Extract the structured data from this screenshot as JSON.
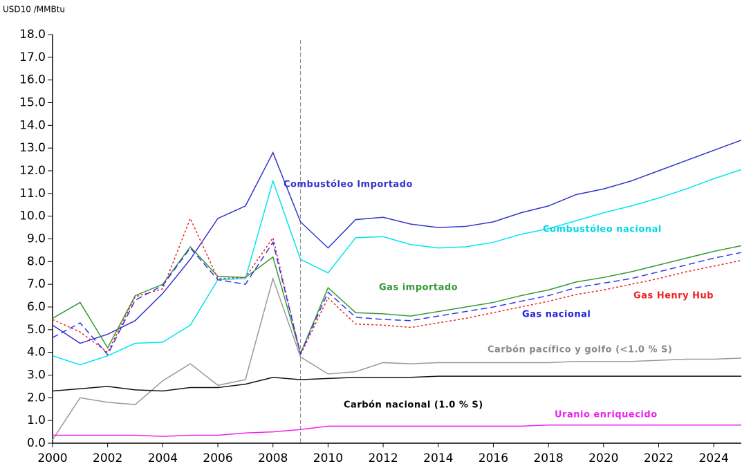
{
  "chart_data": {
    "type": "line",
    "y_label": "USD10 /MMBtu",
    "x": [
      2000,
      2001,
      2002,
      2003,
      2004,
      2005,
      2006,
      2007,
      2008,
      2009,
      2010,
      2011,
      2012,
      2013,
      2014,
      2015,
      2016,
      2017,
      2018,
      2019,
      2020,
      2021,
      2022,
      2023,
      2024,
      2025
    ],
    "xlim": [
      2000,
      2025
    ],
    "xticks": [
      2000,
      2002,
      2004,
      2006,
      2008,
      2010,
      2012,
      2014,
      2016,
      2018,
      2020,
      2022,
      2024
    ],
    "ylim": [
      0,
      18
    ],
    "yticks": [
      {
        "value": 0,
        "label": "0.0"
      },
      {
        "value": 1,
        "label": "1.0"
      },
      {
        "value": 2,
        "label": "2.0"
      },
      {
        "value": 3,
        "label": "3.0"
      },
      {
        "value": 4,
        "label": "4.0"
      },
      {
        "value": 5,
        "label": "5.0"
      },
      {
        "value": 6,
        "label": "6.0"
      },
      {
        "value": 7,
        "label": "7.0"
      },
      {
        "value": 8,
        "label": "8.0"
      },
      {
        "value": 9,
        "label": "9.0"
      },
      {
        "value": 10,
        "label": "10.0"
      },
      {
        "value": 11,
        "label": "11.0"
      },
      {
        "value": 12,
        "label": "12.0"
      },
      {
        "value": 13,
        "label": "13.0"
      },
      {
        "value": 14,
        "label": "14.0"
      },
      {
        "value": 15,
        "label": "15.0"
      },
      {
        "value": 16,
        "label": "16.0"
      },
      {
        "value": 17,
        "label": "17.0"
      },
      {
        "value": 18,
        "label": "18.0"
      }
    ],
    "vline": 2009,
    "series": [
      {
        "name": "Combustóleo Importado",
        "color": "#3333cc",
        "dash": "solid",
        "values": [
          5.2,
          4.4,
          4.8,
          5.4,
          6.6,
          8.1,
          9.9,
          10.45,
          12.8,
          9.75,
          8.6,
          9.85,
          9.95,
          9.65,
          9.5,
          9.55,
          9.75,
          10.15,
          10.45,
          10.95,
          11.2,
          11.55,
          12.0,
          12.45,
          12.9,
          13.35
        ]
      },
      {
        "name": "Combustóleo nacional",
        "color": "#00e5ee",
        "dash": "solid",
        "values": [
          3.85,
          3.45,
          3.85,
          4.4,
          4.45,
          5.2,
          7.2,
          7.25,
          11.55,
          8.1,
          7.5,
          9.05,
          9.1,
          8.75,
          8.6,
          8.65,
          8.85,
          9.2,
          9.45,
          9.8,
          10.15,
          10.45,
          10.8,
          11.2,
          11.65,
          12.05
        ]
      },
      {
        "name": "Gas importado",
        "color": "#339933",
        "dash": "solid",
        "values": [
          5.5,
          6.2,
          4.2,
          6.5,
          7.0,
          8.65,
          7.35,
          7.3,
          8.2,
          3.95,
          6.85,
          5.75,
          5.7,
          5.6,
          5.8,
          6.0,
          6.2,
          6.5,
          6.75,
          7.1,
          7.3,
          7.55,
          7.85,
          8.15,
          8.45,
          8.7
        ]
      },
      {
        "name": "Gas Henry Hub",
        "color": "#ee2222",
        "dash": "dotted",
        "values": [
          5.45,
          4.9,
          4.0,
          6.45,
          6.8,
          9.9,
          7.25,
          7.3,
          9.05,
          3.9,
          6.4,
          5.25,
          5.2,
          5.1,
          5.3,
          5.5,
          5.75,
          6.0,
          6.25,
          6.55,
          6.75,
          7.0,
          7.25,
          7.55,
          7.8,
          8.05
        ]
      },
      {
        "name": "Gas nacional",
        "color": "#3333ee",
        "dash": "dashed",
        "values": [
          4.65,
          5.3,
          3.9,
          6.3,
          6.95,
          8.6,
          7.2,
          7.0,
          8.85,
          3.95,
          6.65,
          5.55,
          5.45,
          5.4,
          5.6,
          5.8,
          6.0,
          6.25,
          6.5,
          6.85,
          7.05,
          7.25,
          7.55,
          7.85,
          8.15,
          8.4
        ]
      },
      {
        "name": "Carbón pacífico y golfo (<1.0 % S)",
        "color": "#999999",
        "dash": "solid",
        "values": [
          0.15,
          2.0,
          1.8,
          1.7,
          2.75,
          3.5,
          2.55,
          2.8,
          7.25,
          3.8,
          3.05,
          3.15,
          3.55,
          3.5,
          3.55,
          3.55,
          3.55,
          3.55,
          3.55,
          3.6,
          3.6,
          3.6,
          3.65,
          3.7,
          3.7,
          3.75
        ]
      },
      {
        "name": "Carbón nacional (1.0 % S)",
        "color": "#111111",
        "dash": "solid",
        "values": [
          2.3,
          2.4,
          2.5,
          2.35,
          2.3,
          2.45,
          2.45,
          2.6,
          2.9,
          2.8,
          2.85,
          2.9,
          2.9,
          2.9,
          2.95,
          2.95,
          2.95,
          2.95,
          2.95,
          2.95,
          2.95,
          2.95,
          2.95,
          2.95,
          2.95,
          2.95
        ]
      },
      {
        "name": "Uranio enriquecido",
        "color": "#ee22ee",
        "dash": "solid",
        "values": [
          0.35,
          0.35,
          0.35,
          0.35,
          0.3,
          0.35,
          0.35,
          0.45,
          0.5,
          0.6,
          0.75,
          0.75,
          0.75,
          0.75,
          0.75,
          0.75,
          0.75,
          0.75,
          0.8,
          0.8,
          0.8,
          0.8,
          0.8,
          0.8,
          0.8,
          0.8
        ]
      }
    ]
  }
}
